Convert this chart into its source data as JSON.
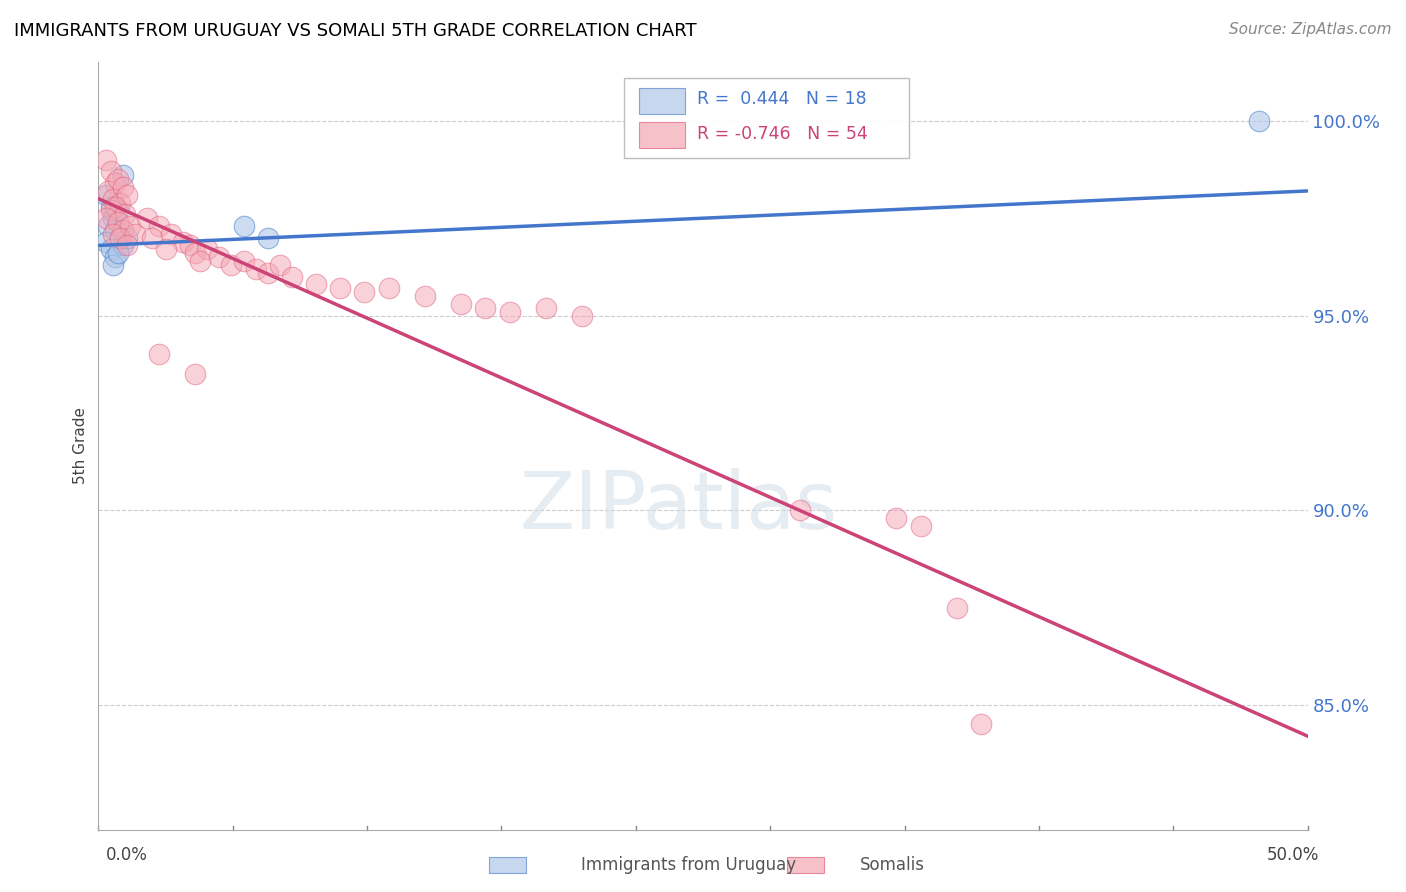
{
  "title": "IMMIGRANTS FROM URUGUAY VS SOMALI 5TH GRADE CORRELATION CHART",
  "source": "Source: ZipAtlas.com",
  "ylabel": "5th Grade",
  "ytick_labels": [
    "100.0%",
    "95.0%",
    "90.0%",
    "85.0%"
  ],
  "ytick_values": [
    1.0,
    0.95,
    0.9,
    0.85
  ],
  "xlim": [
    0.0,
    0.5
  ],
  "ylim": [
    0.818,
    1.015
  ],
  "legend_blue_r": "R =  0.444",
  "legend_blue_n": "N = 18",
  "legend_pink_r": "R = -0.746",
  "legend_pink_n": "N = 54",
  "blue_fill": "#aec6e8",
  "pink_fill": "#f4a7b4",
  "blue_edge": "#5588cc",
  "pink_edge": "#e06080",
  "blue_line": "#4477cc",
  "pink_line": "#cc4477",
  "watermark": "ZIPatlas",
  "blue_points": [
    [
      0.003,
      0.981
    ],
    [
      0.01,
      0.986
    ],
    [
      0.005,
      0.978
    ],
    [
      0.006,
      0.975
    ],
    [
      0.008,
      0.977
    ],
    [
      0.004,
      0.973
    ],
    [
      0.007,
      0.972
    ],
    [
      0.009,
      0.97
    ],
    [
      0.003,
      0.969
    ],
    [
      0.005,
      0.967
    ],
    [
      0.007,
      0.965
    ],
    [
      0.01,
      0.968
    ],
    [
      0.006,
      0.963
    ],
    [
      0.008,
      0.966
    ],
    [
      0.012,
      0.97
    ],
    [
      0.06,
      0.973
    ],
    [
      0.07,
      0.97
    ],
    [
      0.48,
      1.0
    ]
  ],
  "pink_points": [
    [
      0.003,
      0.99
    ],
    [
      0.005,
      0.987
    ],
    [
      0.007,
      0.984
    ],
    [
      0.004,
      0.982
    ],
    [
      0.008,
      0.985
    ],
    [
      0.006,
      0.98
    ],
    [
      0.01,
      0.983
    ],
    [
      0.009,
      0.979
    ],
    [
      0.012,
      0.981
    ],
    [
      0.005,
      0.977
    ],
    [
      0.007,
      0.978
    ],
    [
      0.011,
      0.976
    ],
    [
      0.003,
      0.975
    ],
    [
      0.008,
      0.974
    ],
    [
      0.01,
      0.972
    ],
    [
      0.006,
      0.971
    ],
    [
      0.013,
      0.973
    ],
    [
      0.009,
      0.97
    ],
    [
      0.015,
      0.971
    ],
    [
      0.012,
      0.968
    ],
    [
      0.02,
      0.975
    ],
    [
      0.025,
      0.973
    ],
    [
      0.022,
      0.97
    ],
    [
      0.03,
      0.971
    ],
    [
      0.035,
      0.969
    ],
    [
      0.028,
      0.967
    ],
    [
      0.038,
      0.968
    ],
    [
      0.04,
      0.966
    ],
    [
      0.045,
      0.967
    ],
    [
      0.042,
      0.964
    ],
    [
      0.05,
      0.965
    ],
    [
      0.055,
      0.963
    ],
    [
      0.06,
      0.964
    ],
    [
      0.065,
      0.962
    ],
    [
      0.07,
      0.961
    ],
    [
      0.075,
      0.963
    ],
    [
      0.08,
      0.96
    ],
    [
      0.09,
      0.958
    ],
    [
      0.1,
      0.957
    ],
    [
      0.11,
      0.956
    ],
    [
      0.12,
      0.957
    ],
    [
      0.135,
      0.955
    ],
    [
      0.15,
      0.953
    ],
    [
      0.16,
      0.952
    ],
    [
      0.17,
      0.951
    ],
    [
      0.185,
      0.952
    ],
    [
      0.2,
      0.95
    ],
    [
      0.025,
      0.94
    ],
    [
      0.04,
      0.935
    ],
    [
      0.29,
      0.9
    ],
    [
      0.33,
      0.898
    ],
    [
      0.34,
      0.896
    ],
    [
      0.355,
      0.875
    ],
    [
      0.365,
      0.845
    ]
  ],
  "blue_trendline": [
    [
      0.0,
      0.968
    ],
    [
      0.5,
      0.982
    ]
  ],
  "pink_trendline": [
    [
      0.0,
      0.98
    ],
    [
      0.5,
      0.842
    ]
  ]
}
